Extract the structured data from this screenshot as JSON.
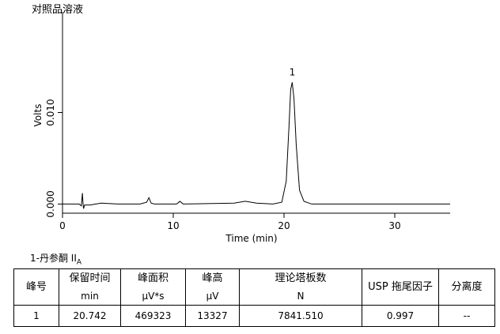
{
  "chart_data": {
    "type": "line",
    "title": "对照品溶液",
    "xlabel": "Time (min)",
    "ylabel": "Volts",
    "x": [
      0,
      1.5,
      1.7,
      1.8,
      1.85,
      1.9,
      2.0,
      2.5,
      3.0,
      3.5,
      5,
      7.0,
      7.6,
      7.8,
      8.0,
      8.3,
      10.3,
      10.6,
      10.9,
      15.5,
      16.5,
      17.5,
      19,
      19.8,
      20.2,
      20.45,
      20.6,
      20.74,
      20.9,
      21.1,
      21.4,
      21.8,
      22.5,
      35
    ],
    "series": [
      {
        "color": "#000000",
        "values": [
          0,
          0,
          -0.0002,
          0.0012,
          0.0001,
          -0.0005,
          -0.0001,
          -0.0001,
          0,
          0.0001,
          0,
          0,
          0.0002,
          0.0007,
          0.0001,
          0,
          0,
          0.0003,
          0,
          0.0001,
          0.0003,
          0.0001,
          0,
          0.0002,
          0.0025,
          0.0085,
          0.0125,
          0.0133,
          0.0115,
          0.0065,
          0.0015,
          0.0003,
          0,
          0
        ]
      }
    ],
    "xlim": [
      0,
      35
    ],
    "xticks": [
      0,
      10,
      20,
      30
    ],
    "ylim": [
      -0.001,
      0.021
    ],
    "yticks": [
      {
        "value": 0,
        "label": "0.000"
      },
      {
        "value": 0.01,
        "label": "0.010"
      }
    ],
    "annotations": [
      {
        "text": "1",
        "x": 20.742,
        "y": 0.0133
      }
    ]
  },
  "table": {
    "caption": "1-丹参酮 II",
    "caption_sub": "A",
    "header": [
      [
        "峰号"
      ],
      [
        "保留时间",
        "min"
      ],
      [
        "峰面积",
        "µV*s"
      ],
      [
        "峰高",
        "µV"
      ],
      [
        "理论塔板数",
        "N"
      ],
      [
        "USP 拖尾因子"
      ],
      [
        "分离度"
      ]
    ],
    "rows": [
      [
        "1",
        "20.742",
        "469323",
        "13327",
        "7841.510",
        "0.997",
        "--"
      ]
    ]
  }
}
